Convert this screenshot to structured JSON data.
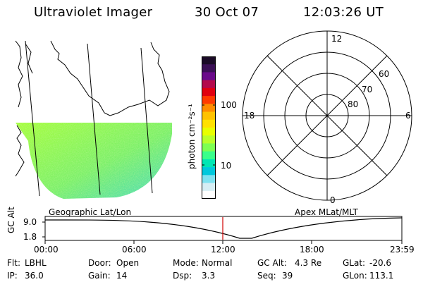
{
  "header": {
    "title": "Ultraviolet Imager",
    "date": "30 Oct 07",
    "time": "12:03:26 UT"
  },
  "geo_panel": {
    "label": "Geographic Lat/Lon"
  },
  "colorbar": {
    "unit_label": "photon cm⁻²s⁻¹",
    "tick_labels": [
      "100",
      "10"
    ],
    "scale": "log",
    "colors": [
      "#1a0a26",
      "#3a0f55",
      "#6a0a8a",
      "#b30a4c",
      "#e00010",
      "#ff3a00",
      "#ff8c00",
      "#ffc200",
      "#ffe100",
      "#e8ff00",
      "#b9ff2a",
      "#7dff52",
      "#3aff8a",
      "#00e6b4",
      "#00c8dc",
      "#7fe2f0",
      "#d6eef4",
      "#ffffff"
    ]
  },
  "polar_panel": {
    "label": "Apex MLat/MLT",
    "mlt_labels": {
      "top": "12",
      "left": "18",
      "right": "6",
      "bottom": "0"
    },
    "lat_labels": [
      "60",
      "70",
      "80"
    ]
  },
  "altitude_strip": {
    "ylabel": "GC Alt",
    "y_ticks": [
      "9.0",
      "1.8"
    ],
    "x_ticks": [
      "00:00",
      "06:00",
      "12:00",
      "18:00",
      "23:59"
    ],
    "current_time_color": "#d00000"
  },
  "footer": {
    "rows": [
      [
        {
          "key": "Flt:",
          "value": "LBHL"
        },
        {
          "key": "Door:",
          "value": "Open"
        },
        {
          "key": "Mode:",
          "value": "Normal"
        },
        {
          "key": "GC Alt:",
          "value": "4.3 Re"
        },
        {
          "key": "GLat:",
          "value": "-20.6"
        }
      ],
      [
        {
          "key": "IP:",
          "value": "36.0"
        },
        {
          "key": "Gain:",
          "value": "14"
        },
        {
          "key": "Dsp:",
          "value": "3.3"
        },
        {
          "key": "Seq:",
          "value": "39"
        },
        {
          "key": "GLon:",
          "value": "113.1"
        }
      ]
    ]
  }
}
